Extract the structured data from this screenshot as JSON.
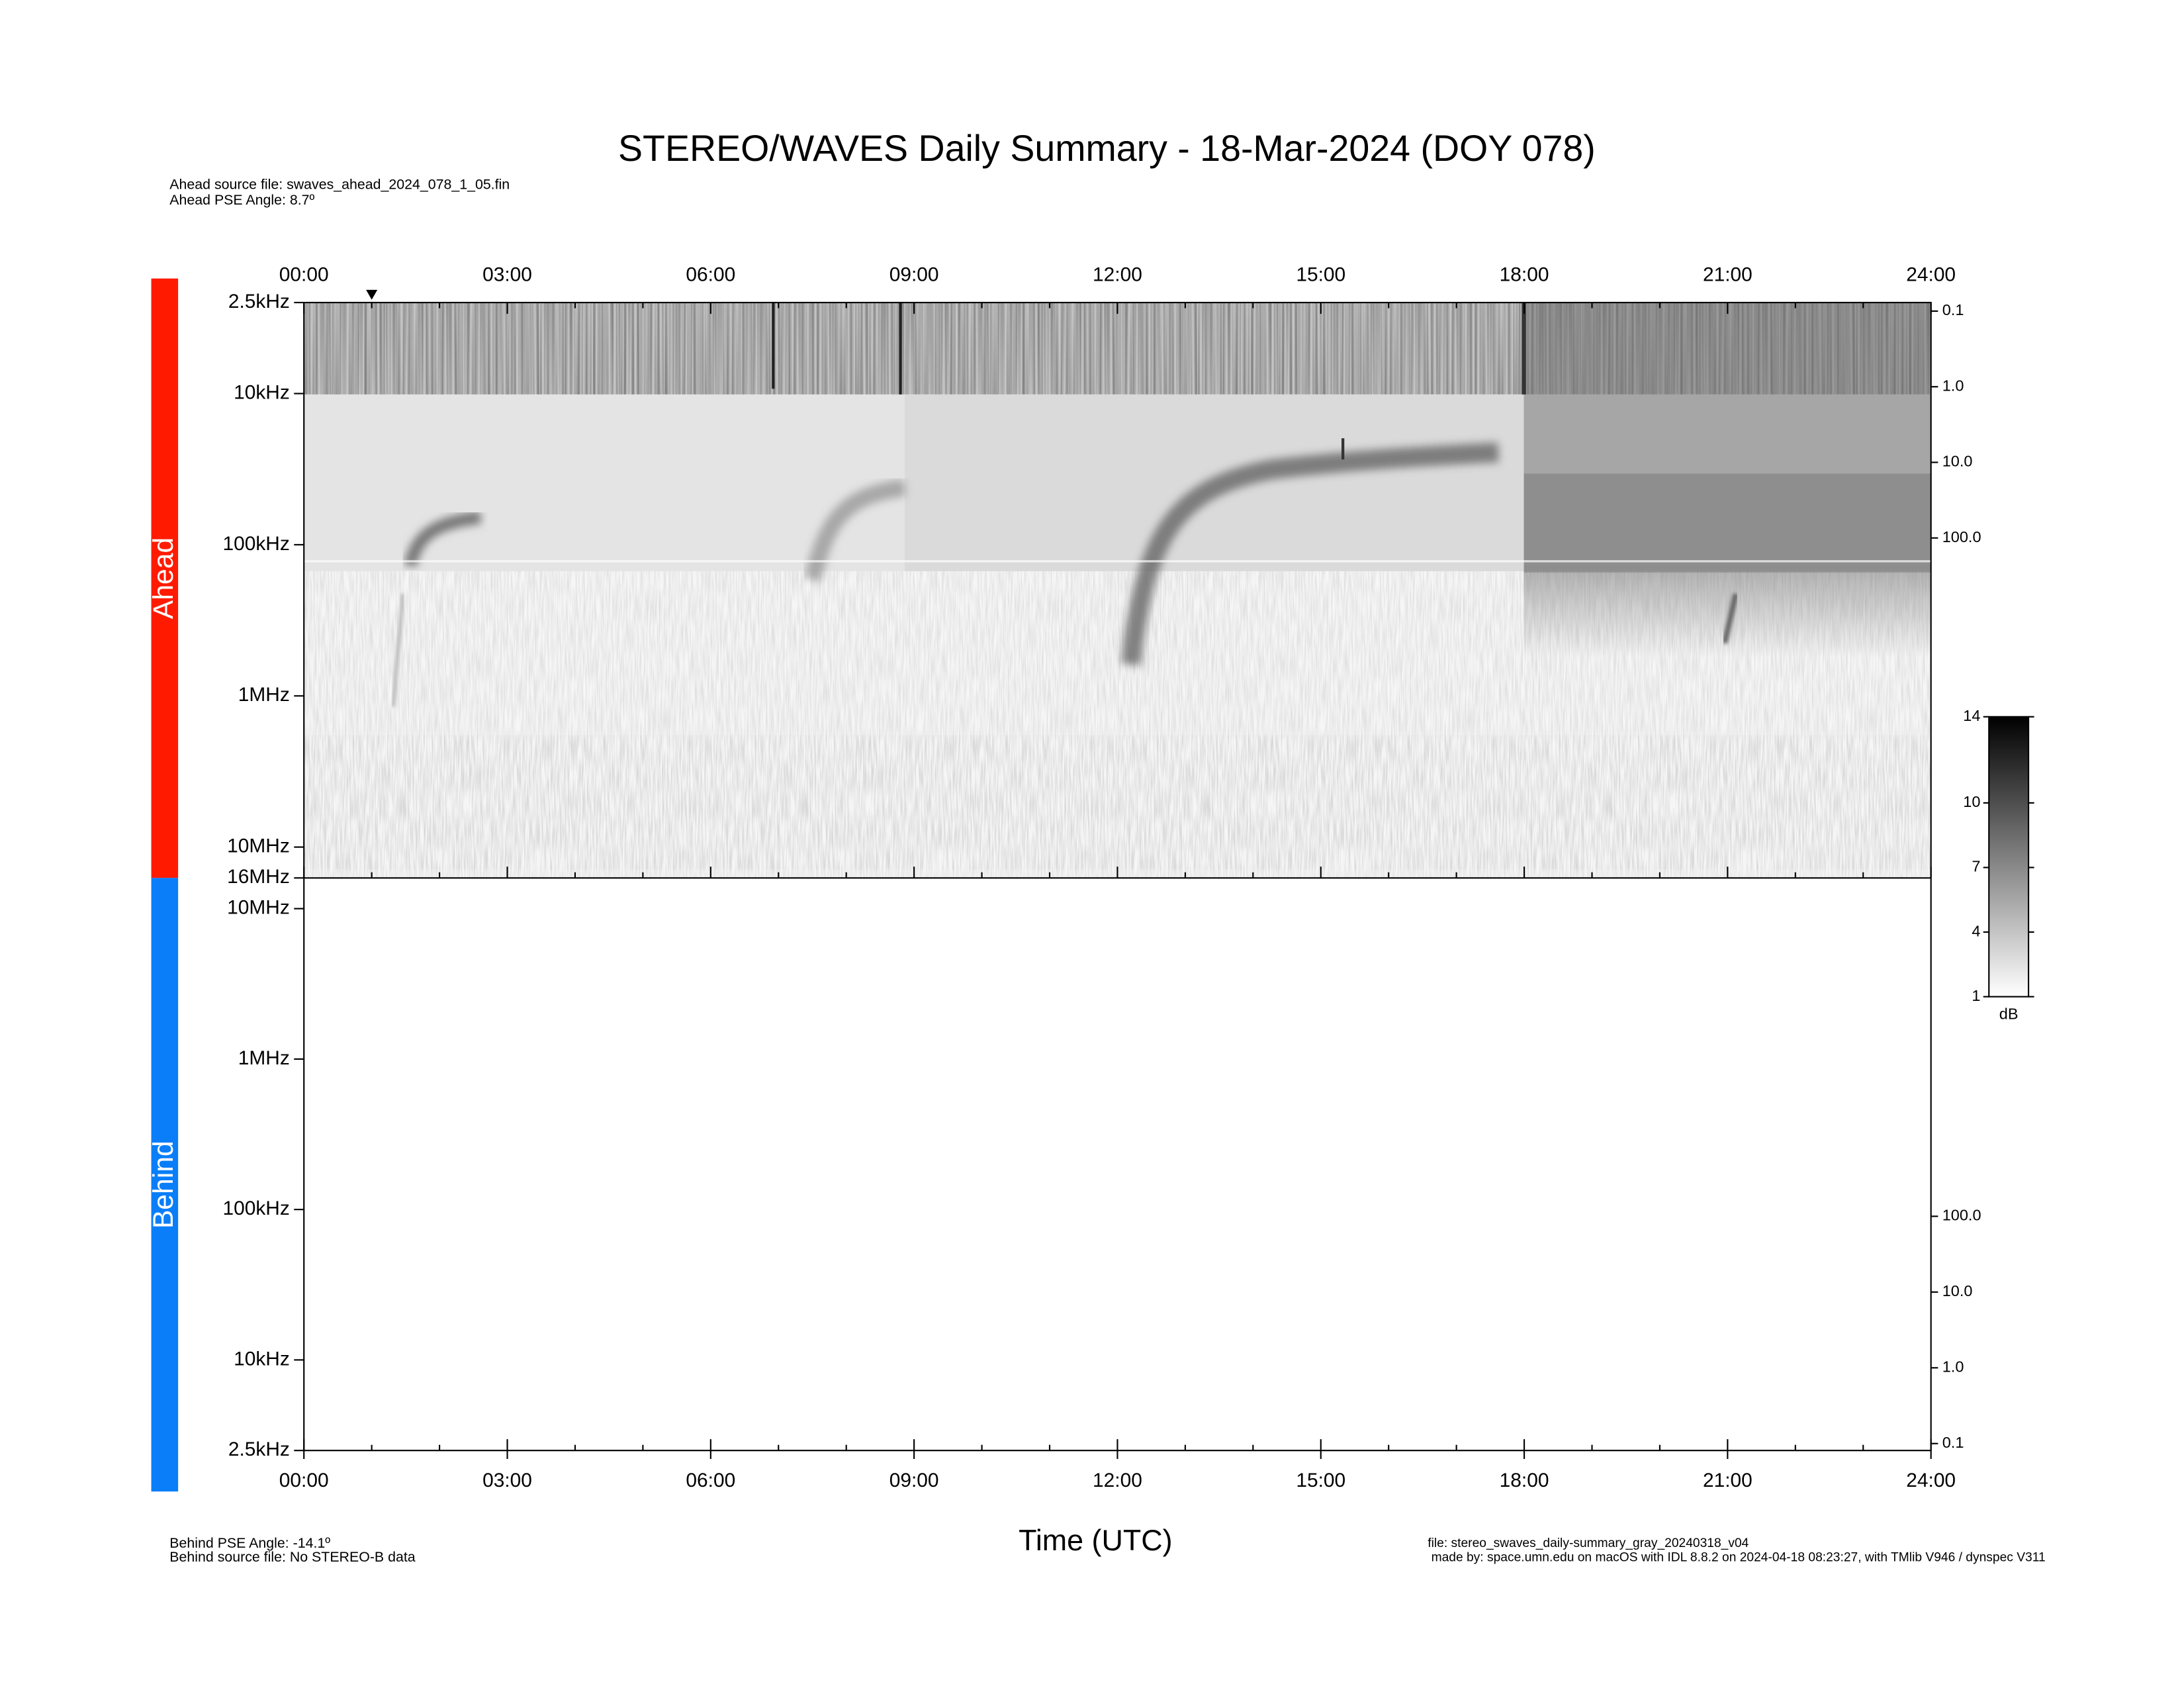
{
  "chart_data": {
    "type": "spectrogram",
    "title": "STEREO/WAVES Daily Summary - 18-Mar-2024 (DOY 078)",
    "header_notes": [
      "Ahead source file: swaves_ahead_2024_078_1_05.fin",
      "Ahead PSE Angle:    8.7º"
    ],
    "footer_left": [
      "Behind PSE Angle:  -14.1º",
      "Behind source file: No STEREO-B data"
    ],
    "footer_right": [
      "file: stereo_swaves_daily-summary_gray_20240318_v04",
      "made by: space.umn.edu on macOS with IDL 8.8.2 on 2024-04-18 08:23:27, with TMlib V946 / dynspec V311"
    ],
    "x_label": "Time (UTC)",
    "xlim": [
      0,
      24
    ],
    "xticks": [
      {
        "value": 0,
        "label": "00:00"
      },
      {
        "value": 3,
        "label": "03:00"
      },
      {
        "value": 6,
        "label": "06:00"
      },
      {
        "value": 9,
        "label": "09:00"
      },
      {
        "value": 12,
        "label": "12:00"
      },
      {
        "value": 15,
        "label": "15:00"
      },
      {
        "value": 18,
        "label": "18:00"
      },
      {
        "value": 21,
        "label": "21:00"
      },
      {
        "value": 24,
        "label": "24:00"
      }
    ],
    "xminor_ticks": [
      1,
      2,
      4,
      5,
      7,
      8,
      10,
      11,
      13,
      14,
      16,
      17,
      19,
      20,
      22,
      23
    ],
    "marker_x": 1,
    "log_scale": true,
    "panels": [
      {
        "name": "Ahead",
        "color": "#ff1a00",
        "ylim": [
          2.5,
          16000
        ],
        "yticks": [
          {
            "value": 2.5,
            "label": "2.5kHz"
          },
          {
            "value": 10,
            "label": "10kHz"
          },
          {
            "value": 100,
            "label": "100kHz"
          },
          {
            "value": 1000,
            "label": "1MHz"
          },
          {
            "value": 10000,
            "label": "10MHz"
          },
          {
            "value": 16000,
            "label": "16MHz"
          }
        ],
        "y2lim": [
          0.077,
          3130000
        ],
        "y2ticks": [
          {
            "value": 0.1,
            "label": "0.1"
          },
          {
            "value": 1,
            "label": "1.0"
          },
          {
            "value": 10,
            "label": "10.0"
          },
          {
            "value": 100,
            "label": "100.0"
          }
        ]
      },
      {
        "name": "Behind",
        "color": "#0a7ef8",
        "ylim": [
          16000,
          2.5
        ],
        "yticks": [
          {
            "value": 10000,
            "label": "10MHz"
          },
          {
            "value": 1000,
            "label": "1MHz"
          },
          {
            "value": 100,
            "label": "100kHz"
          },
          {
            "value": 10,
            "label": "10kHz"
          },
          {
            "value": 2.5,
            "label": "2.5kHz"
          }
        ],
        "y2lim": [
          2930000,
          0.081
        ],
        "y2ticks": [
          {
            "value": 100,
            "label": "100.0"
          },
          {
            "value": 10,
            "label": "10.0"
          },
          {
            "value": 1,
            "label": "1.0"
          },
          {
            "value": 0.1,
            "label": "0.1"
          }
        ]
      }
    ],
    "colorbar": {
      "label": "dB",
      "lim": [
        1,
        14
      ],
      "ticks": [
        1,
        4,
        7,
        10,
        14
      ]
    }
  }
}
